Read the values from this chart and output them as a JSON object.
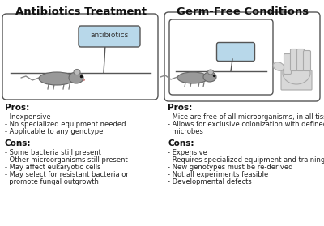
{
  "title_left": "Antibiotics Treatment",
  "title_right": "Germ-Free Conditions",
  "bg_color": "#ffffff",
  "box_edge_color": "#555555",
  "antibiotic_box_color": "#b8d8ea",
  "antibiotic_label": "antibiotics",
  "pros_left_header": "Pros:",
  "pros_left": [
    "- Inexpensive",
    "- No specialized equipment needed",
    "- Applicable to any genotype"
  ],
  "cons_left_header": "Cons:",
  "cons_left": [
    "- Some bacteria still present",
    "- Other microorganisms still present",
    "- May affect eukaryotic cells",
    "- May select for resistant bacteria or",
    "  promote fungal outgrowth"
  ],
  "pros_right_header": "Pros:",
  "pros_right": [
    "- Mice are free of all microorganisms, in all tissues",
    "- Allows for exclusive colonization with defined",
    "  microbes"
  ],
  "cons_right_header": "Cons:",
  "cons_right": [
    "- Expensive",
    "- Requires specialized equipment and training",
    "- New genotypes must be re-derived",
    "- Not all experiments feasible",
    "- Developmental defects"
  ],
  "title_fontsize": 9.5,
  "header_fontsize": 7.5,
  "body_fontsize": 6.0,
  "label_fontsize": 6.5
}
